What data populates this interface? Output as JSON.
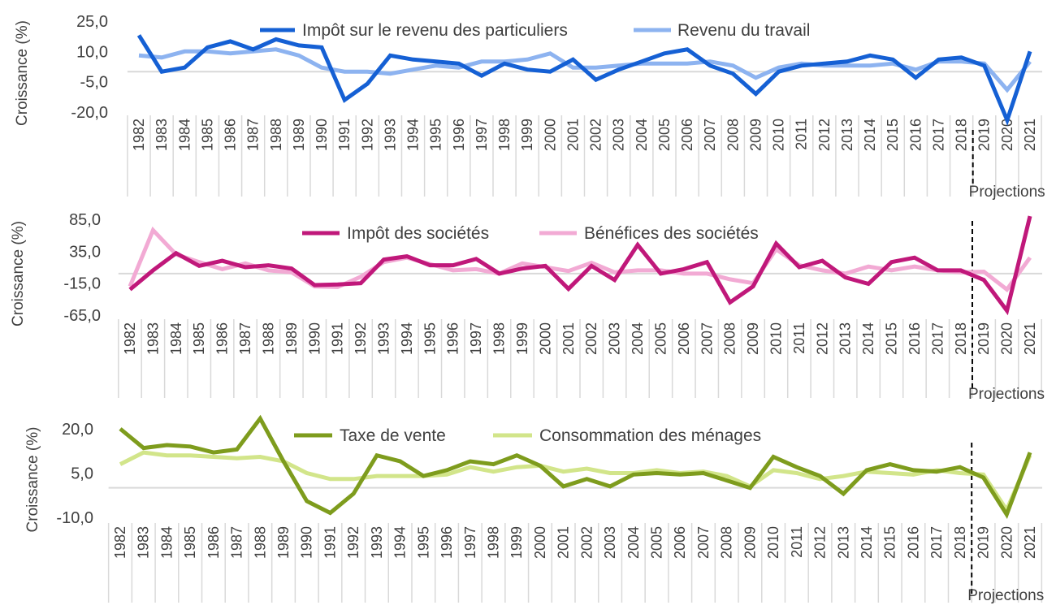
{
  "projection_label": "Projections",
  "chart_data": [
    {
      "type": "line",
      "ylabel": "Croissance (%)",
      "ylim": [
        -20,
        25
      ],
      "yticks": [
        "25,0",
        "10,0",
        "-5,0",
        "-20,0"
      ],
      "categories": [
        "1982",
        "1983",
        "1984",
        "1985",
        "1986",
        "1987",
        "1988",
        "1989",
        "1990",
        "1991",
        "1992",
        "1993",
        "1994",
        "1995",
        "1996",
        "1997",
        "1998",
        "1999",
        "2000",
        "2001",
        "2002",
        "2003",
        "2004",
        "2005",
        "2006",
        "2007",
        "2008",
        "2009",
        "2010",
        "2011",
        "2012",
        "2013",
        "2014",
        "2015",
        "2016",
        "2017",
        "2018",
        "2019",
        "2020",
        "2021"
      ],
      "projection_start": "2019",
      "legend_position": "top",
      "grid": false,
      "series": [
        {
          "name": "Impôt sur le revenu des particuliers",
          "color": "#1560D4",
          "values": [
            18,
            0,
            2,
            12,
            15,
            11,
            16,
            13,
            12,
            -14,
            -6,
            8,
            6,
            5,
            4,
            -2,
            4,
            1,
            0,
            6,
            -4,
            1,
            5,
            9,
            11,
            3,
            -1,
            -11,
            0,
            3,
            4,
            5,
            8,
            6,
            -3,
            6,
            7,
            3,
            -24,
            10
          ]
        },
        {
          "name": "Revenu du travail",
          "color": "#8DB3F0",
          "values": [
            8,
            7,
            10,
            10,
            9,
            10,
            11,
            8,
            2,
            0,
            0,
            -1,
            1,
            3,
            2,
            5,
            5,
            6,
            9,
            2,
            2,
            3,
            4,
            4,
            4,
            5,
            3,
            -3,
            2,
            4,
            3,
            3,
            3,
            4,
            1,
            5,
            5,
            4,
            -9,
            5
          ]
        }
      ]
    },
    {
      "type": "line",
      "ylabel": "Croissance (%)",
      "ylim": [
        -65,
        85
      ],
      "yticks": [
        "85,0",
        "35,0",
        "-15,0",
        "-65,0"
      ],
      "categories": [
        "1982",
        "1983",
        "1984",
        "1985",
        "1986",
        "1987",
        "1988",
        "1989",
        "1990",
        "1991",
        "1992",
        "1993",
        "1994",
        "1995",
        "1996",
        "1997",
        "1998",
        "1999",
        "2000",
        "2001",
        "2002",
        "2003",
        "2004",
        "2005",
        "2006",
        "2007",
        "2008",
        "2009",
        "2010",
        "2011",
        "2012",
        "2013",
        "2014",
        "2015",
        "2016",
        "2017",
        "2018",
        "2019",
        "2020",
        "2021"
      ],
      "projection_start": "2019",
      "legend_position": "top",
      "grid": false,
      "series": [
        {
          "name": "Impôt des sociétés",
          "color": "#C0187A",
          "values": [
            -25,
            5,
            32,
            12,
            20,
            10,
            13,
            8,
            -18,
            -17,
            -15,
            22,
            27,
            13,
            13,
            23,
            0,
            8,
            12,
            -24,
            12,
            -10,
            45,
            0,
            7,
            18,
            -45,
            -20,
            47,
            10,
            20,
            -6,
            -16,
            18,
            25,
            5,
            5,
            -10,
            -58,
            90
          ]
        },
        {
          "name": "Bénéfices des sociétés",
          "color": "#F2AAD4",
          "values": [
            -20,
            68,
            30,
            18,
            7,
            16,
            5,
            2,
            -20,
            -21,
            -5,
            18,
            25,
            15,
            5,
            7,
            0,
            16,
            10,
            4,
            17,
            2,
            5,
            5,
            0,
            0,
            -9,
            -15,
            38,
            13,
            5,
            0,
            11,
            5,
            11,
            5,
            2,
            3,
            -25,
            25
          ]
        }
      ]
    },
    {
      "type": "line",
      "ylabel": "Croissance (%)",
      "ylim": [
        -10,
        20
      ],
      "yticks": [
        "20,0",
        "5,0",
        "-10,0"
      ],
      "categories": [
        "1982",
        "1983",
        "1984",
        "1985",
        "1986",
        "1987",
        "1988",
        "1989",
        "1990",
        "1991",
        "1992",
        "1993",
        "1994",
        "1995",
        "1996",
        "1997",
        "1998",
        "1999",
        "2000",
        "2001",
        "2002",
        "2003",
        "2004",
        "2005",
        "2006",
        "2007",
        "2008",
        "2009",
        "2010",
        "2011",
        "2012",
        "2013",
        "2014",
        "2015",
        "2016",
        "2017",
        "2018",
        "2019",
        "2020",
        "2021"
      ],
      "projection_start": "2019",
      "legend_position": "top",
      "grid": false,
      "series": [
        {
          "name": "Taxe de vente",
          "color": "#7E9C1D",
          "values": [
            20,
            13.5,
            14.5,
            14,
            12,
            13,
            23.5,
            9,
            -4.5,
            -8.5,
            -2,
            11,
            9,
            4,
            6,
            9,
            8,
            11,
            7.5,
            0.5,
            3,
            0.5,
            4.5,
            5,
            4.5,
            5,
            2.5,
            0,
            10.5,
            7,
            4,
            -2,
            6,
            8,
            6,
            5.5,
            7,
            3.5,
            -9,
            12
          ]
        },
        {
          "name": "Consommation des ménages",
          "color": "#D2E58A",
          "values": [
            8,
            12,
            11,
            11,
            10.5,
            10,
            10.5,
            9,
            5,
            3,
            3,
            4,
            4,
            4,
            4.5,
            7,
            5.5,
            7,
            7.5,
            5.5,
            6.5,
            5,
            5,
            6,
            5,
            5.5,
            4,
            0.5,
            6,
            5,
            3,
            4,
            5.5,
            5,
            4.5,
            6,
            5,
            4.5,
            -7.5,
            11
          ]
        }
      ]
    }
  ]
}
